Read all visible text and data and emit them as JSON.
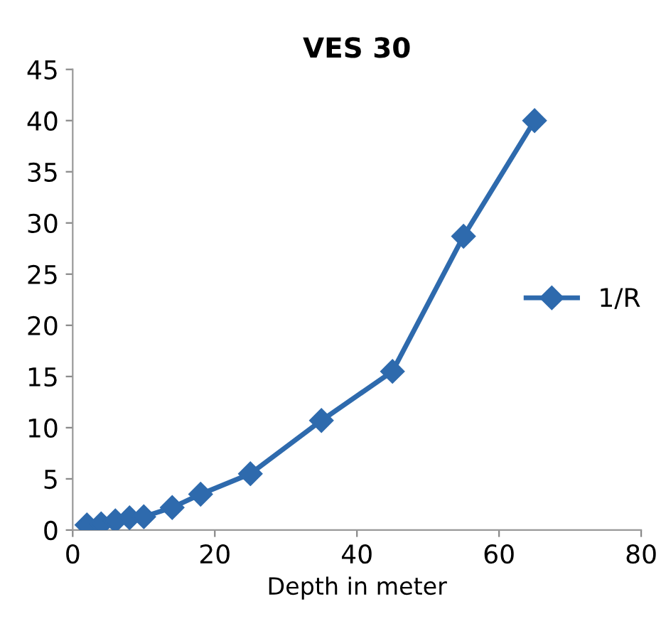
{
  "chart_data": {
    "type": "line",
    "title": "VES 30",
    "xlabel": "Depth in meter",
    "x": [
      2,
      4,
      6,
      8,
      10,
      14,
      18,
      25,
      35,
      45,
      55,
      65
    ],
    "series": [
      {
        "name": "1/R",
        "color": "#2e6aad",
        "values": [
          0.5,
          0.6,
          0.9,
          1.2,
          1.3,
          2.2,
          3.5,
          5.5,
          10.7,
          15.5,
          28.7,
          40
        ]
      }
    ],
    "xlim": [
      0,
      80
    ],
    "xticks": [
      0,
      20,
      40,
      60,
      80
    ],
    "ylim": [
      0,
      45
    ],
    "yticks": [
      0,
      5,
      10,
      15,
      20,
      25,
      30,
      35,
      40,
      45
    ],
    "marker": "diamond",
    "line_style": "solid",
    "grid": false,
    "legend": "right"
  }
}
